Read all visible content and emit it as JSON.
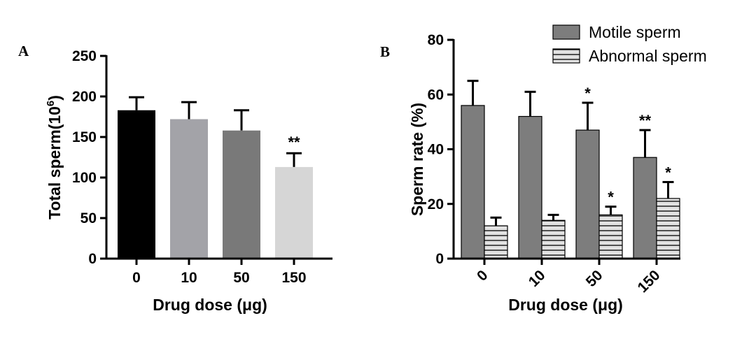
{
  "chart_data": [
    {
      "panel": "A",
      "type": "bar",
      "categories": [
        "0",
        "10",
        "50",
        "150"
      ],
      "values": [
        183,
        172,
        158,
        113
      ],
      "errors": [
        16,
        21,
        25,
        17
      ],
      "significance": [
        "",
        "",
        "",
        "**"
      ],
      "colors": [
        "#000000",
        "#a3a3a8",
        "#797979",
        "#d6d6d6"
      ],
      "xlabel": "Drug dose (μg)",
      "ylabel": "Total sperm(10",
      "ylabel_sup": "6",
      "ylabel_close": ")",
      "ylim": [
        0,
        250
      ],
      "yticks": [
        0,
        50,
        100,
        150,
        200,
        250
      ],
      "grid": false
    },
    {
      "panel": "B",
      "type": "bar",
      "categories": [
        "0",
        "10",
        "50",
        "150"
      ],
      "series": [
        {
          "name": "Motile sperm",
          "values": [
            56,
            52,
            47,
            37
          ],
          "errors": [
            9,
            9,
            10,
            10
          ],
          "significance": [
            "",
            "",
            "*",
            "**"
          ],
          "color": "#7d7d7d",
          "pattern": "solid"
        },
        {
          "name": "Abnormal sperm",
          "values": [
            12,
            14,
            16,
            22
          ],
          "errors": [
            3,
            2,
            3,
            6
          ],
          "significance": [
            "",
            "",
            "*",
            "*"
          ],
          "color": "#d9d9d9",
          "pattern": "horizontal-stripes"
        }
      ],
      "xlabel": "Drug dose (μg)",
      "ylabel": "Sperm rate (%)",
      "ylim": [
        0,
        80
      ],
      "yticks": [
        0,
        20,
        40,
        60,
        80
      ],
      "legend_position": "top-right",
      "grid": false
    }
  ]
}
